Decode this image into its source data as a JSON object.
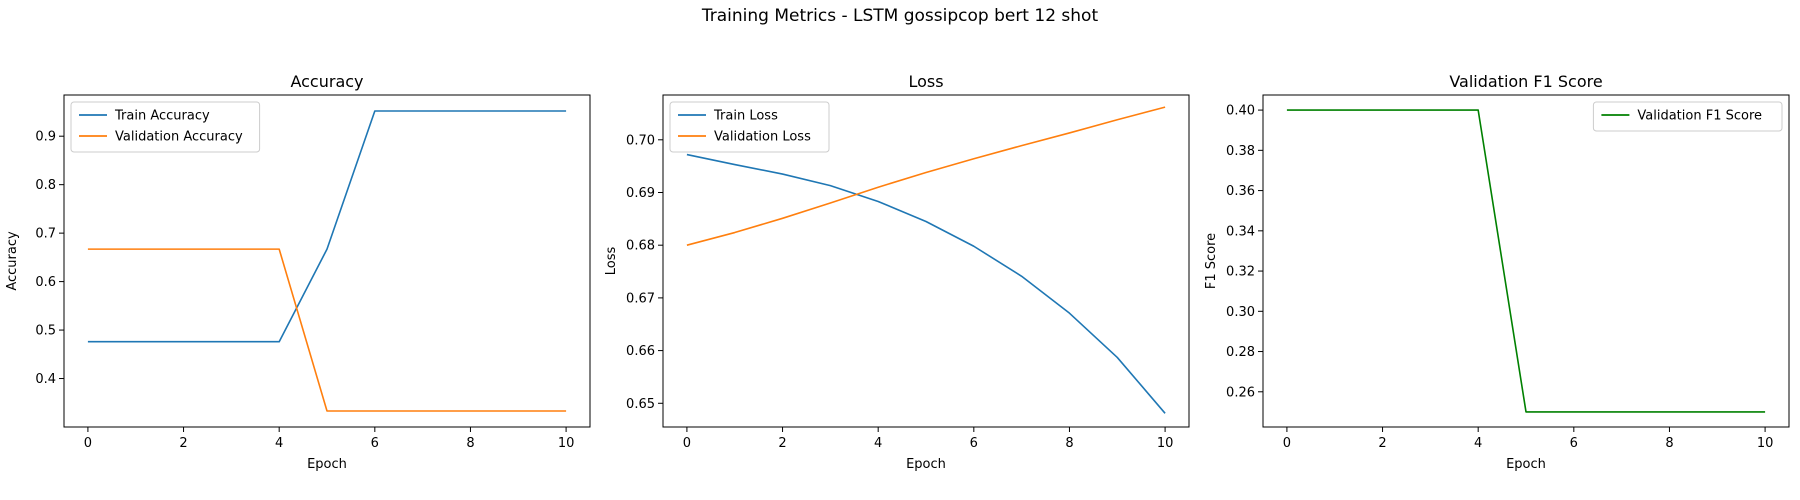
{
  "figure": {
    "title": "Training Metrics - LSTM gossipcop bert 12 shot"
  },
  "chart_data": [
    {
      "type": "line",
      "title": "Accuracy",
      "xlabel": "Epoch",
      "ylabel": "Accuracy",
      "xlim": [
        -0.5,
        10.5
      ],
      "ylim": [
        0.3,
        0.985
      ],
      "xticks": [
        0,
        2,
        4,
        6,
        8,
        10
      ],
      "yticks": [
        0.4,
        0.5,
        0.6,
        0.7,
        0.8,
        0.9
      ],
      "ytick_labels": [
        "0.4",
        "0.5",
        "0.6",
        "0.7",
        "0.8",
        "0.9"
      ],
      "legend_position": "top-left",
      "x": [
        0,
        1,
        2,
        3,
        4,
        5,
        6,
        7,
        8,
        9,
        10
      ],
      "series": [
        {
          "name": "Train Accuracy",
          "color": "#1f77b4",
          "values": [
            0.476,
            0.476,
            0.476,
            0.476,
            0.476,
            0.667,
            0.952,
            0.952,
            0.952,
            0.952,
            0.952
          ]
        },
        {
          "name": "Validation Accuracy",
          "color": "#ff7f0e",
          "values": [
            0.667,
            0.667,
            0.667,
            0.667,
            0.667,
            0.333,
            0.333,
            0.333,
            0.333,
            0.333,
            0.333
          ]
        }
      ]
    },
    {
      "type": "line",
      "title": "Loss",
      "xlabel": "Epoch",
      "ylabel": "Loss",
      "xlim": [
        -0.5,
        10.5
      ],
      "ylim": [
        0.6455,
        0.7085
      ],
      "xticks": [
        0,
        2,
        4,
        6,
        8,
        10
      ],
      "yticks": [
        0.65,
        0.66,
        0.67,
        0.68,
        0.69,
        0.7
      ],
      "ytick_labels": [
        "0.65",
        "0.66",
        "0.67",
        "0.68",
        "0.69",
        "0.70"
      ],
      "legend_position": "top-left",
      "x": [
        0,
        1,
        2,
        3,
        4,
        5,
        6,
        7,
        8,
        9,
        10
      ],
      "series": [
        {
          "name": "Train Loss",
          "color": "#1f77b4",
          "values": [
            0.6972,
            0.6953,
            0.6935,
            0.6913,
            0.6883,
            0.6845,
            0.6798,
            0.6741,
            0.6671,
            0.6587,
            0.6481
          ]
        },
        {
          "name": "Validation Loss",
          "color": "#ff7f0e",
          "values": [
            0.68,
            0.6824,
            0.6851,
            0.688,
            0.691,
            0.6938,
            0.6964,
            0.6989,
            0.7013,
            0.7038,
            0.7062
          ]
        }
      ]
    },
    {
      "type": "line",
      "title": "Validation F1 Score",
      "xlabel": "Epoch",
      "ylabel": "F1 Score",
      "xlim": [
        -0.5,
        10.5
      ],
      "ylim": [
        0.2425,
        0.4075
      ],
      "xticks": [
        0,
        2,
        4,
        6,
        8,
        10
      ],
      "yticks": [
        0.26,
        0.28,
        0.3,
        0.32,
        0.34,
        0.36,
        0.38,
        0.4
      ],
      "ytick_labels": [
        "0.26",
        "0.28",
        "0.30",
        "0.32",
        "0.34",
        "0.36",
        "0.38",
        "0.40"
      ],
      "legend_position": "top-right",
      "x": [
        0,
        1,
        2,
        3,
        4,
        5,
        6,
        7,
        8,
        9,
        10
      ],
      "series": [
        {
          "name": "Validation F1 Score",
          "color": "#008000",
          "values": [
            0.4,
            0.4,
            0.4,
            0.4,
            0.4,
            0.25,
            0.25,
            0.25,
            0.25,
            0.25,
            0.25
          ]
        }
      ]
    }
  ]
}
